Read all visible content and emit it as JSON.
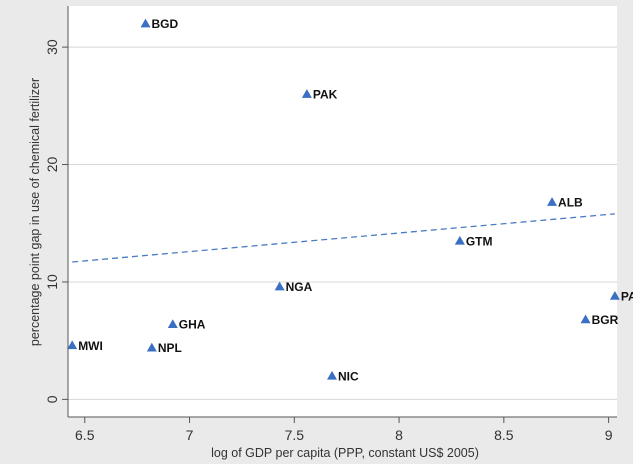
{
  "chart_data": {
    "type": "scatter",
    "xlabel": "log of GDP per capita (PPP, constant US$ 2005)",
    "ylabel": "percentage point gap in use of chemical fertilizer",
    "xlim": [
      6.42,
      9.04
    ],
    "ylim": [
      -1.5,
      33.5
    ],
    "xticks": [
      6.5,
      7,
      7.5,
      8,
      8.5,
      9
    ],
    "yticks": [
      0,
      10,
      20,
      30
    ],
    "grid": "horizontal",
    "points": [
      {
        "label": "BGD",
        "x": 6.79,
        "y": 32.0
      },
      {
        "label": "PAK",
        "x": 7.56,
        "y": 26.0
      },
      {
        "label": "ALB",
        "x": 8.73,
        "y": 16.8
      },
      {
        "label": "GTM",
        "x": 8.29,
        "y": 13.5
      },
      {
        "label": "NGA",
        "x": 7.43,
        "y": 9.6
      },
      {
        "label": "PA",
        "x": 9.03,
        "y": 8.8
      },
      {
        "label": "BGR",
        "x": 8.89,
        "y": 6.8
      },
      {
        "label": "GHA",
        "x": 6.92,
        "y": 6.4
      },
      {
        "label": "MWI",
        "x": 6.44,
        "y": 4.6
      },
      {
        "label": "NPL",
        "x": 6.82,
        "y": 4.4
      },
      {
        "label": "NIC",
        "x": 7.68,
        "y": 2.0
      }
    ],
    "fit_line": {
      "x": [
        6.44,
        9.03
      ],
      "y": [
        11.7,
        15.8
      ]
    },
    "colors": {
      "marker": "#3a6fc4",
      "fit": "#4a7cc4",
      "grid": "#d8d8d8",
      "plot_bg": "#ffffff"
    }
  }
}
